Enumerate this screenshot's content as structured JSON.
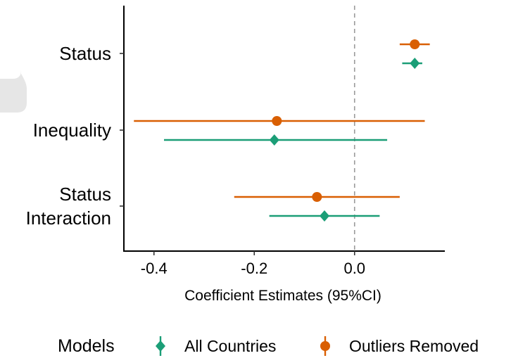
{
  "chart_data": {
    "type": "forest",
    "title": "",
    "xlabel": "Coefficient Estimates (95%CI)",
    "ylabel": "",
    "xlim": [
      -0.46,
      0.18
    ],
    "xticks": [
      -0.4,
      -0.2,
      0.0
    ],
    "xtick_labels": [
      "-0.4",
      "-0.2",
      "0.0"
    ],
    "reference_line": 0.0,
    "categories": [
      {
        "id": "status",
        "lines": [
          "Status"
        ]
      },
      {
        "id": "inequality",
        "lines": [
          "Inequality"
        ]
      },
      {
        "id": "interaction",
        "lines": [
          "Status",
          "Interaction"
        ]
      }
    ],
    "legend_title": "Models",
    "legend_position": "bottom",
    "series": [
      {
        "name": "All Countries",
        "color": "#1b9e77",
        "marker": "diamond",
        "points": [
          {
            "category": "status",
            "estimate": 0.12,
            "lower": 0.095,
            "upper": 0.135
          },
          {
            "category": "inequality",
            "estimate": -0.16,
            "lower": -0.38,
            "upper": 0.065
          },
          {
            "category": "interaction",
            "estimate": -0.06,
            "lower": -0.17,
            "upper": 0.05
          }
        ]
      },
      {
        "name": "Outliers Removed",
        "color": "#d95f02",
        "marker": "circle",
        "points": [
          {
            "category": "status",
            "estimate": 0.12,
            "lower": 0.09,
            "upper": 0.15
          },
          {
            "category": "inequality",
            "estimate": -0.155,
            "lower": -0.44,
            "upper": 0.14
          },
          {
            "category": "interaction",
            "estimate": -0.075,
            "lower": -0.24,
            "upper": 0.09
          }
        ]
      }
    ]
  }
}
